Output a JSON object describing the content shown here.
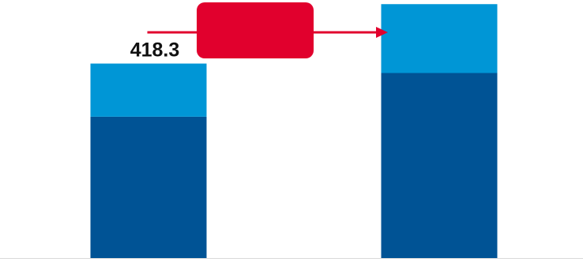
{
  "chart_data": {
    "type": "bar",
    "stacked": true,
    "categories": [
      "",
      ""
    ],
    "series": [
      {
        "values": [
          304,
          398
        ],
        "color": "#005395"
      },
      {
        "values": [
          114.3,
          148.1
        ],
        "color": "#0096d6"
      }
    ],
    "totals": [
      "418.3",
      "546.1"
    ],
    "ylim": [
      0,
      555
    ],
    "grid": false,
    "legend": "none",
    "callout": {
      "text": "",
      "color": "#e1002d",
      "from_category": 0,
      "to_category": 1
    }
  }
}
